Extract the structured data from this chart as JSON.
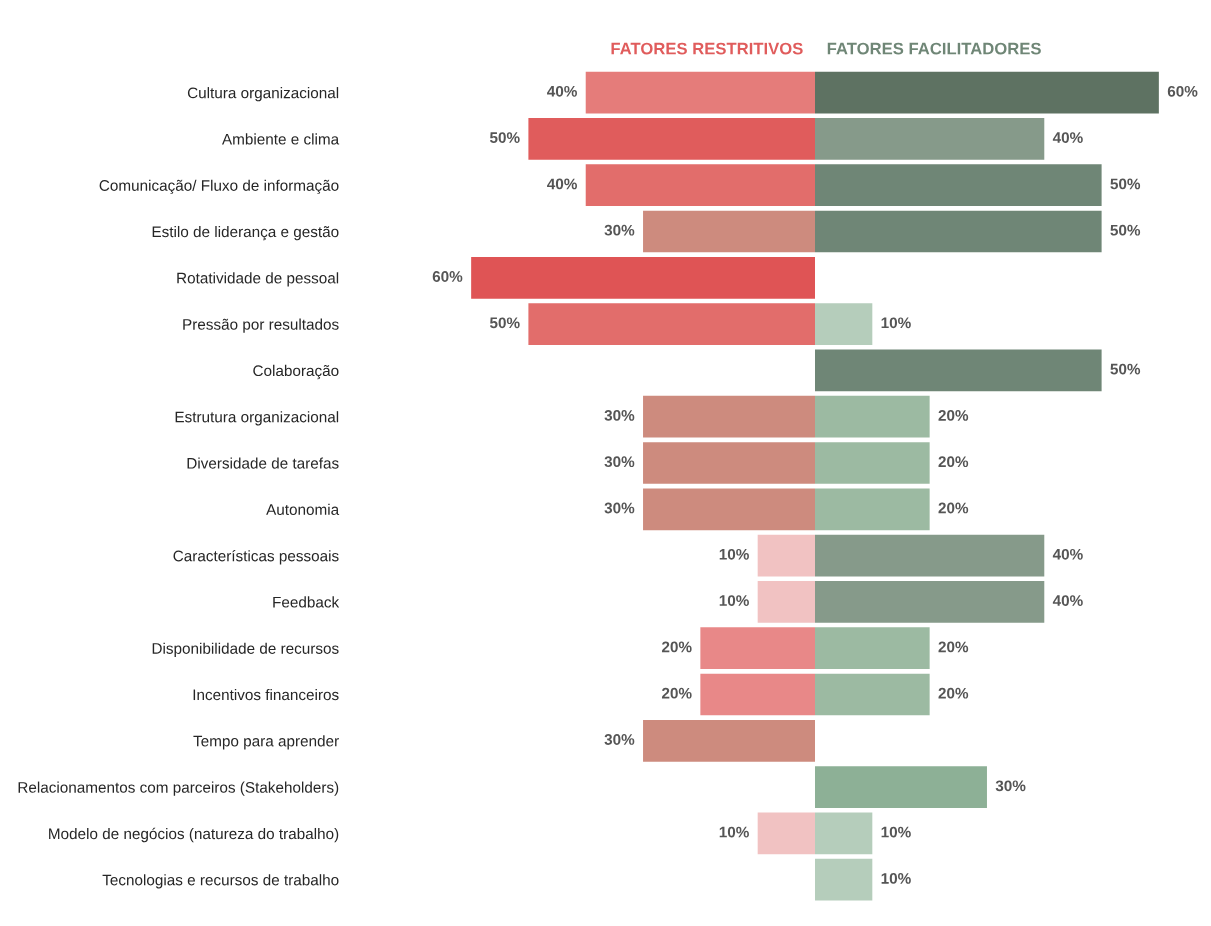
{
  "chart_data": [
    {
      "type": "bar",
      "orientation": "horizontal",
      "legend": "top right",
      "tick_labels": "y",
      "grid": false,
      "xlim": [
        60,
        0
      ],
      "categories": [
        "Cultura organizacional",
        "Ambiente e clima",
        "Comunicação/ Fluxo de informação",
        "Estilo de liderança e gestão",
        "Rotatividade de pessoal",
        "Pressão por resultados",
        "Colaboração",
        "Estrutura organizacional",
        "Diversidade de tarefas",
        "Autonomia",
        "Características pessoais",
        "Feedback",
        "Disponibilidade de recursos",
        "Incentivos financeiros",
        "Tempo para aprender",
        "Relacionamentos com parceiros (Stakeholders)",
        "Modelo de negócios (natureza do trabalho)",
        "Tecnologias e recursos de trabalho"
      ],
      "series": [
        {
          "name": "FATORES RESTRITIVOS",
          "color": "#e05c5c",
          "values": [
            40,
            50,
            40,
            30,
            60,
            50,
            null,
            30,
            30,
            30,
            10,
            10,
            20,
            20,
            30,
            null,
            10,
            null
          ],
          "value_labels": [
            "40%",
            "50%",
            "40%",
            "30%",
            "60%",
            "50%",
            null,
            "30%",
            "30%",
            "30%",
            "10%",
            "10%",
            "20%",
            "20%",
            "30%",
            null,
            "10%",
            null
          ],
          "colors": [
            "#e57c7a",
            "#e05c5c",
            "#e26d6b",
            "#cd8b7e",
            "#df5455",
            "#e26d6b",
            "#e26d6b",
            "#cd8b7e",
            "#cd8b7e",
            "#cd8b7e",
            "#f1c2c2",
            "#f1c2c2",
            "#e88888",
            "#e88888",
            "#cd8b7e",
            "#e26d6b",
            "#f1c2c2",
            "#f1c2c2"
          ]
        }
      ]
    },
    {
      "type": "bar",
      "orientation": "horizontal",
      "legend": "top left",
      "tick_labels": false,
      "grid": false,
      "xlim": [
        0,
        60
      ],
      "categories": [
        null,
        null,
        null,
        null,
        null,
        null,
        null,
        null,
        null,
        null,
        null,
        null,
        null,
        null,
        null,
        null,
        null,
        null
      ],
      "series": [
        {
          "name": "FATORES FACILITADORES",
          "color": "#6f8676",
          "values": [
            60,
            40,
            50,
            50,
            null,
            10,
            50,
            20,
            20,
            20,
            40,
            40,
            20,
            20,
            null,
            30,
            10,
            10
          ],
          "value_labels": [
            "60%",
            "40%",
            "50%",
            "50%",
            null,
            "10%",
            "50%",
            "20%",
            "20%",
            "20%",
            "40%",
            "40%",
            "20%",
            "20%",
            null,
            "30%",
            "10%",
            "10%"
          ],
          "colors": [
            "#5e7262",
            "#869a8a",
            "#6f8676",
            "#6f8676",
            "#6f8676",
            "#b5cdbb",
            "#6f8676",
            "#9cbaa2",
            "#9cbaa2",
            "#9cbaa2",
            "#869a8a",
            "#869a8a",
            "#9cbaa2",
            "#9cbaa2",
            "#9cbaa2",
            "#8db096",
            "#b5cdbb",
            "#b5cdbb"
          ]
        }
      ]
    }
  ]
}
